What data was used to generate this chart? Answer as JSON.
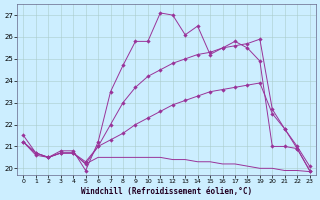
{
  "xlabel": "Windchill (Refroidissement éolien,°C)",
  "background_color": "#cceeff",
  "line_color": "#993399",
  "grid_color": "#aacccc",
  "xlim": [
    -0.5,
    23.5
  ],
  "ylim": [
    19.7,
    27.5
  ],
  "yticks": [
    20,
    21,
    22,
    23,
    24,
    25,
    26,
    27
  ],
  "xticks": [
    0,
    1,
    2,
    3,
    4,
    5,
    6,
    7,
    8,
    9,
    10,
    11,
    12,
    13,
    14,
    15,
    16,
    17,
    18,
    19,
    20,
    21,
    22,
    23
  ],
  "series": [
    {
      "x": [
        0,
        1,
        2,
        3,
        4,
        5,
        6,
        7,
        8,
        9,
        10,
        11,
        12,
        13,
        14,
        15,
        16,
        17,
        18,
        19,
        20,
        21,
        22,
        23
      ],
      "y": [
        21.5,
        20.7,
        20.5,
        20.8,
        20.8,
        19.9,
        21.2,
        23.5,
        24.7,
        25.8,
        25.8,
        27.1,
        27.0,
        26.1,
        26.5,
        25.2,
        25.5,
        25.8,
        25.5,
        24.9,
        21.0,
        21.0,
        20.9,
        19.9
      ],
      "marker": true
    },
    {
      "x": [
        0,
        1,
        2,
        3,
        4,
        5,
        6,
        7,
        8,
        9,
        10,
        11,
        12,
        13,
        14,
        15,
        16,
        17,
        18,
        19,
        20,
        21,
        22,
        23
      ],
      "y": [
        21.2,
        20.6,
        20.5,
        20.7,
        20.7,
        20.2,
        21.0,
        22.0,
        23.0,
        23.7,
        24.2,
        24.5,
        24.8,
        25.0,
        25.2,
        25.3,
        25.5,
        25.6,
        25.7,
        25.9,
        22.7,
        21.8,
        21.0,
        20.1
      ],
      "marker": true
    },
    {
      "x": [
        0,
        1,
        2,
        3,
        4,
        5,
        6,
        7,
        8,
        9,
        10,
        11,
        12,
        13,
        14,
        15,
        16,
        17,
        18,
        19,
        20,
        21,
        22,
        23
      ],
      "y": [
        21.2,
        20.7,
        20.5,
        20.7,
        20.7,
        20.3,
        21.0,
        21.3,
        21.6,
        22.0,
        22.3,
        22.6,
        22.9,
        23.1,
        23.3,
        23.5,
        23.6,
        23.7,
        23.8,
        23.9,
        22.5,
        21.8,
        20.9,
        19.9
      ],
      "marker": true
    },
    {
      "x": [
        0,
        1,
        2,
        3,
        4,
        5,
        6,
        7,
        8,
        9,
        10,
        11,
        12,
        13,
        14,
        15,
        16,
        17,
        18,
        19,
        20,
        21,
        22,
        23
      ],
      "y": [
        21.2,
        20.7,
        20.5,
        20.7,
        20.7,
        20.2,
        20.5,
        20.5,
        20.5,
        20.5,
        20.5,
        20.5,
        20.4,
        20.4,
        20.3,
        20.3,
        20.2,
        20.2,
        20.1,
        20.0,
        20.0,
        19.9,
        19.9,
        19.85
      ],
      "marker": false
    }
  ]
}
